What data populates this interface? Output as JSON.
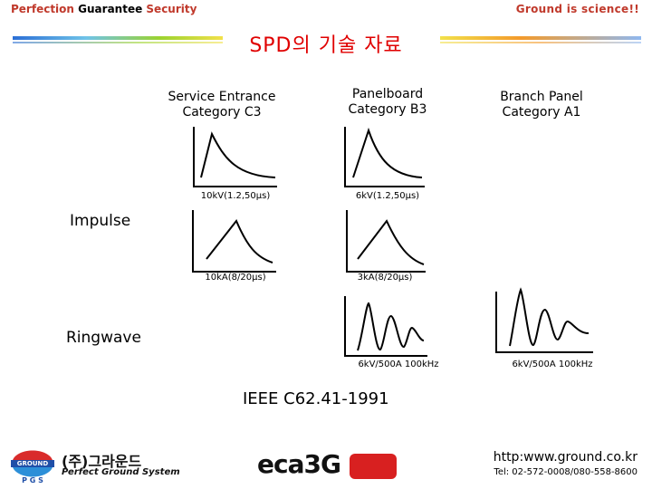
{
  "header": {
    "left_words": [
      "Perfection",
      "Guarantee",
      "Security"
    ],
    "right": "Ground is science!!"
  },
  "title": "SPD의 기술 자료",
  "columns": {
    "c3": "Service Entrance\nCategory C3",
    "b3": "Panelboard\nCategory B3",
    "a1": "Branch Panel\nCategory A1"
  },
  "rows": {
    "impulse": "Impulse",
    "ringwave": "Ringwave"
  },
  "captions": {
    "c3_voltage": "10kV(1.2,50μs)",
    "b3_voltage": "6kV(1.2,50μs)",
    "c3_current": "10kA(8/20μs)",
    "b3_current": "3kA(8/20μs)",
    "b3_ring": "6kV/500A 100kHz",
    "a1_ring": "6kV/500A 100kHz"
  },
  "standard": "IEEE C62.41-1991",
  "footer": {
    "logo_left_top": "GROUND",
    "logo_left_bottom": "P G S",
    "company_kr": "(주)그라운드",
    "company_en": "Perfect Ground System",
    "center_logo": "eca3G",
    "url": "http:www.ground.co.kr",
    "tel": "Tel: 02-572-0008/080-558-8600"
  },
  "colors": {
    "title": "#e00000",
    "accent": "#c0392b",
    "band_blue": "#2c6fd6",
    "band_green": "#9bd32f",
    "band_yellow": "#f2e14a",
    "band_orange": "#f39a2b"
  }
}
